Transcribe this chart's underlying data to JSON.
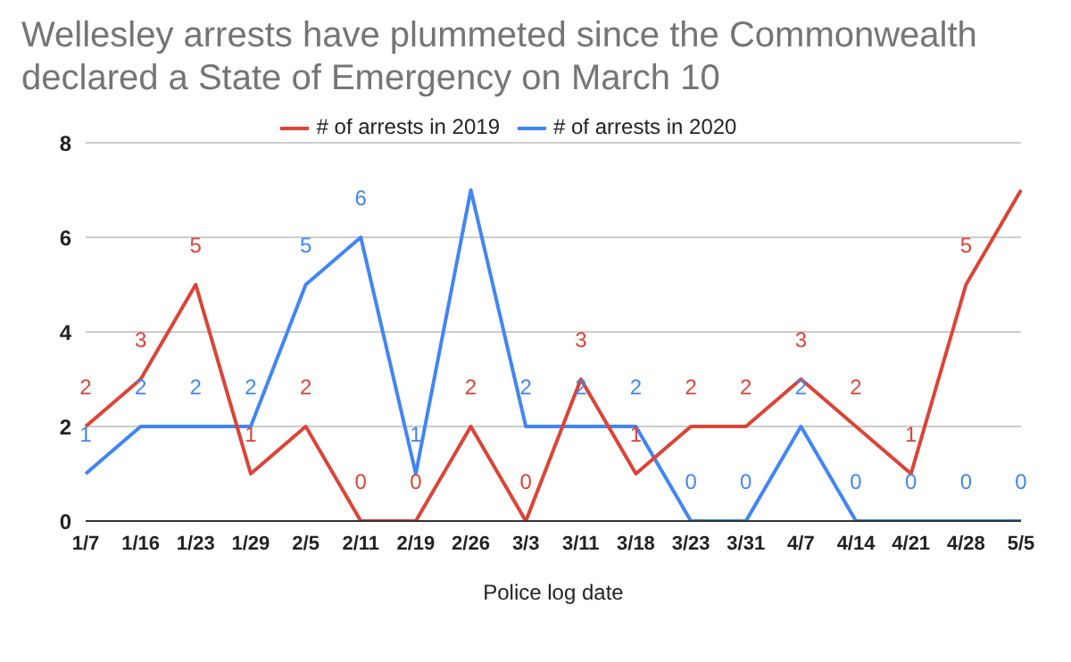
{
  "chart_data": {
    "type": "line",
    "title": "Wellesley arrests have plummeted since the Commonwealth declared a State of Emergency on March 10",
    "xlabel": "Police log date",
    "categories": [
      "1/7",
      "1/16",
      "1/23",
      "1/29",
      "2/5",
      "2/11",
      "2/19",
      "2/26",
      "3/3",
      "3/11",
      "3/18",
      "3/23",
      "3/31",
      "4/7",
      "4/14",
      "4/21",
      "4/28",
      "5/5"
    ],
    "series": [
      {
        "name": "# of arrests in 2020",
        "color": "#4285f4",
        "values": [
          1,
          2,
          2,
          2,
          5,
          6,
          1,
          7,
          2,
          2,
          2,
          0,
          0,
          2,
          0,
          0,
          0,
          0
        ],
        "value_labels": [
          "1",
          "2",
          "2",
          "2",
          "5",
          "6",
          "1",
          null,
          "2",
          "2",
          "2",
          "0",
          "0",
          "2",
          "0",
          "0",
          "0",
          "0"
        ]
      },
      {
        "name": "# of arrests in 2019",
        "color": "#db4437",
        "values": [
          2,
          3,
          5,
          1,
          2,
          0,
          0,
          2,
          0,
          3,
          1,
          2,
          2,
          3,
          2,
          1,
          5,
          7
        ],
        "value_labels": [
          "2",
          "3",
          "5",
          "1",
          "2",
          "0",
          "0",
          "2",
          "0",
          "3",
          "1",
          "2",
          "2",
          "3",
          "2",
          "1",
          "5",
          null
        ]
      }
    ],
    "ylim": [
      0,
      8
    ],
    "yticks": [
      0,
      2,
      4,
      6,
      8
    ],
    "grid": "y",
    "legend": "top",
    "marker": "none",
    "line_style": "solid"
  }
}
